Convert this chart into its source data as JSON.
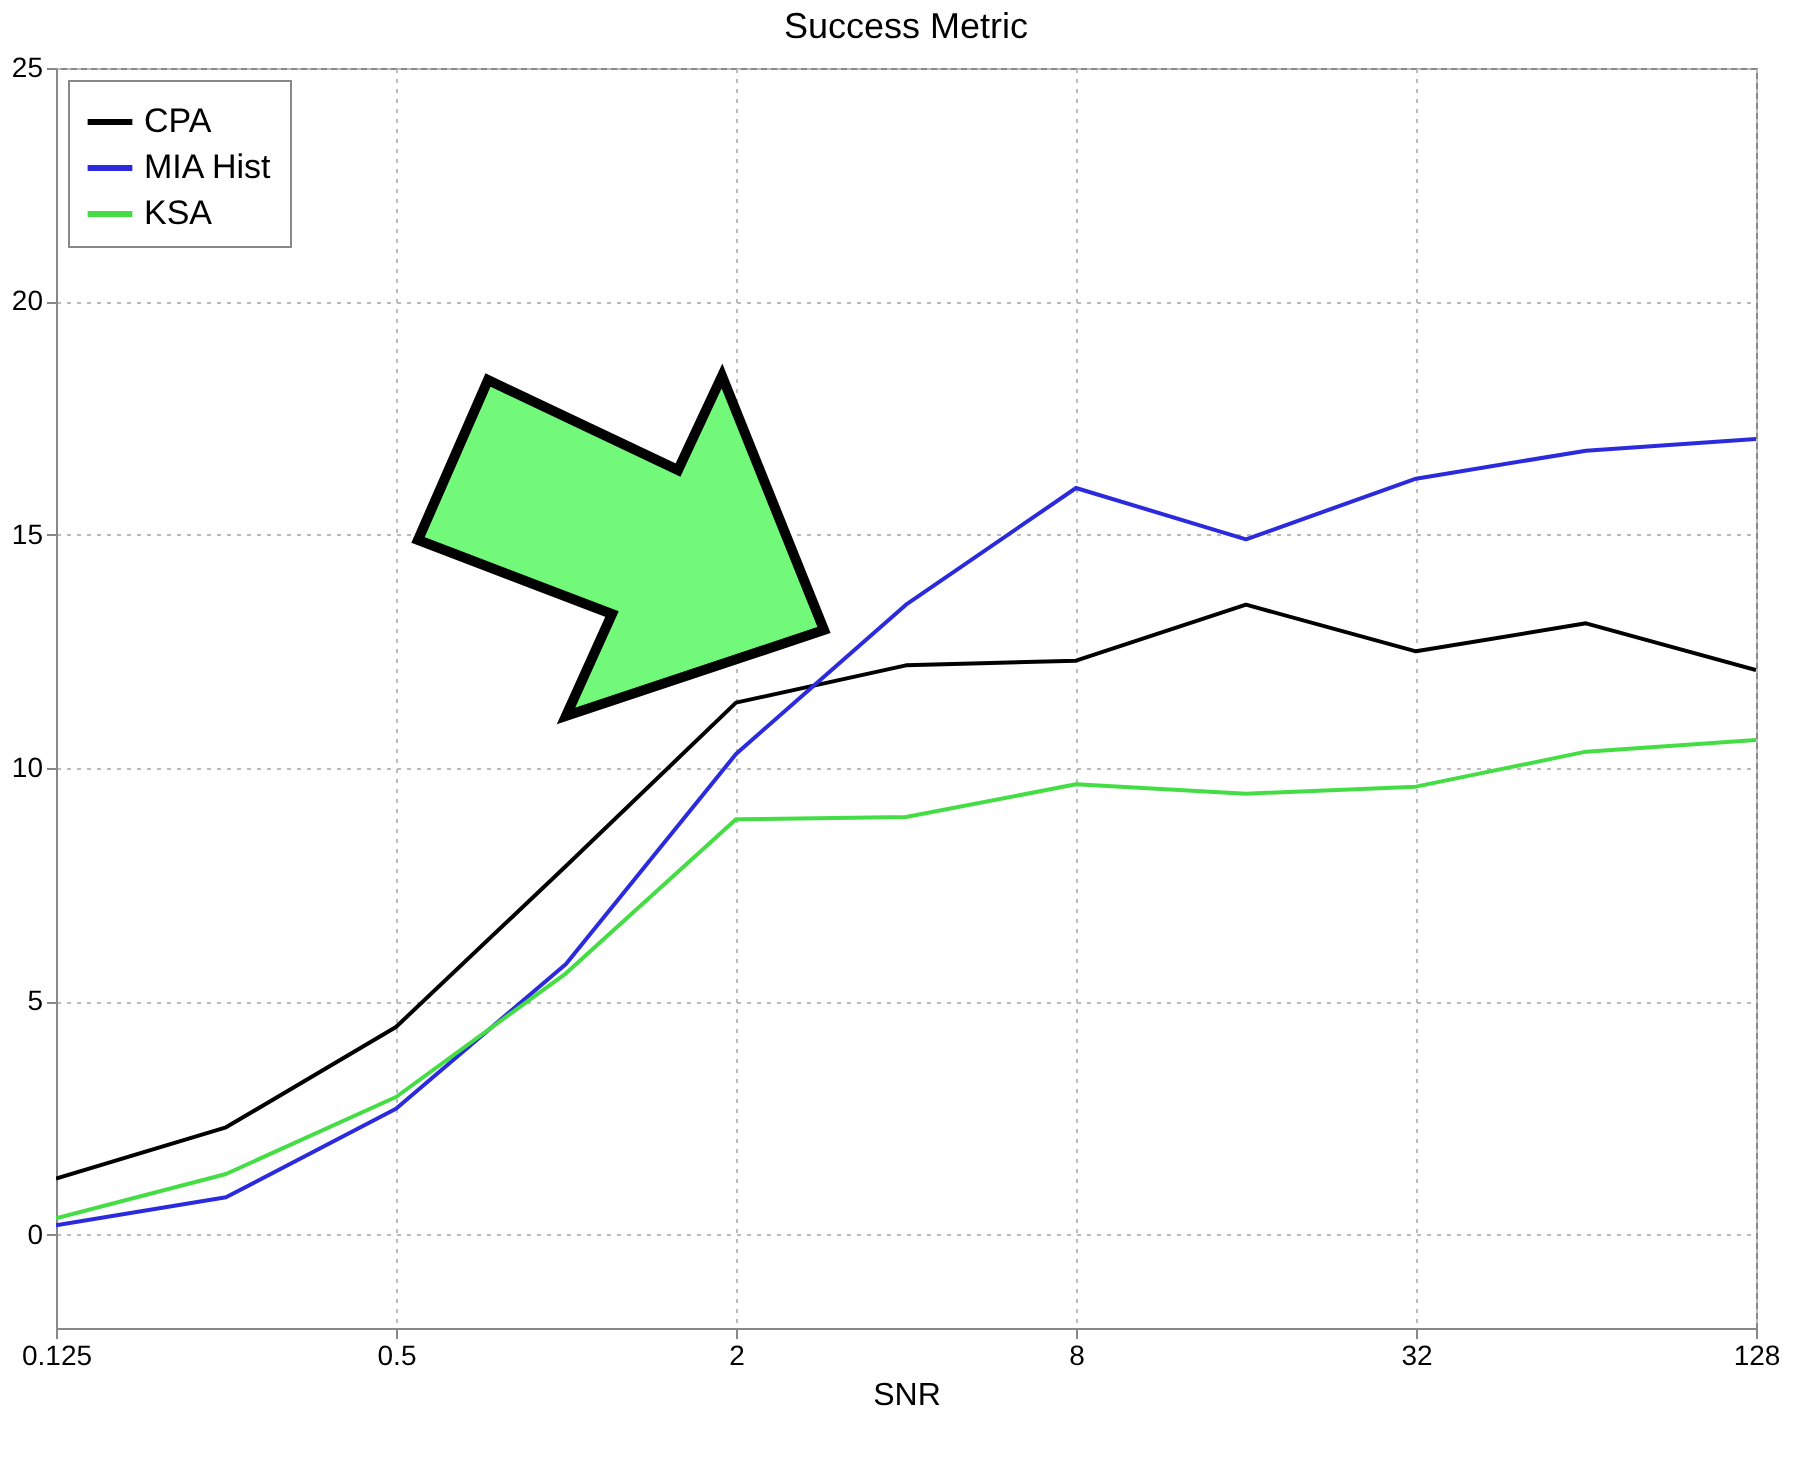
{
  "chart_data": {
    "type": "line",
    "title": "Success Metric",
    "xlabel": "SNR",
    "log": "x",
    "x": [
      0.125,
      0.25,
      0.5,
      1,
      2,
      4,
      8,
      16,
      32,
      64,
      128
    ],
    "xlim": [
      0.125,
      128
    ],
    "xticks": [
      0.125,
      0.5,
      2,
      8,
      32,
      128
    ],
    "ylim": [
      -2,
      25
    ],
    "yticks": [
      0,
      5,
      10,
      15,
      20,
      25
    ],
    "grid": true,
    "legend": "top left",
    "marker": "none",
    "line_style": "solid",
    "series": [
      {
        "name": "CPA",
        "color": "#000000",
        "values": [
          1.2,
          2.3,
          4.45,
          7.9,
          11.4,
          12.2,
          12.3,
          13.5,
          12.5,
          13.1,
          12.1
        ]
      },
      {
        "name": "MIA Hist",
        "color": "#2b2bdd",
        "values": [
          0.2,
          0.8,
          2.7,
          5.8,
          10.3,
          13.5,
          16.0,
          14.9,
          16.2,
          16.8,
          17.05
        ]
      },
      {
        "name": "KSA",
        "color": "#44dd44",
        "values": [
          0.35,
          1.3,
          2.95,
          5.6,
          8.9,
          8.95,
          9.65,
          9.45,
          9.6,
          10.35,
          10.6
        ]
      }
    ]
  }
}
